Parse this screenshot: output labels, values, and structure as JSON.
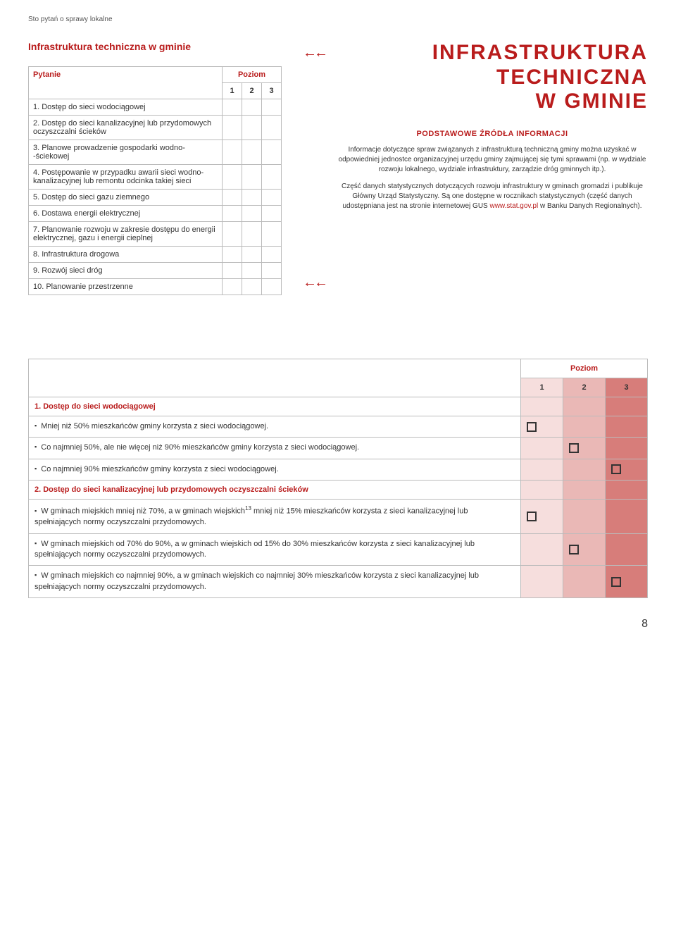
{
  "header": "Sto pytań o sprawy lokalne",
  "left": {
    "section_title": "Infrastruktura techniczna w gminie",
    "col_pytanie": "Pytanie",
    "col_poziom": "Poziom",
    "levels": [
      "1",
      "2",
      "3"
    ],
    "rows": [
      "1. Dostęp do sieci wodociągowej",
      "2. Dostęp do sieci kanalizacyjnej lub przydomowych oczyszczalni ścieków",
      "3. Planowe prowadzenie gospodarki wodno-\n-ściekowej",
      "4. Postępowanie w przypadku awarii sieci wodno-kanalizacyjnej lub remontu odcinka takiej sieci",
      "5. Dostęp do sieci gazu ziemnego",
      "6. Dostawa energii elektrycznej",
      "7. Planowanie rozwoju w zakresie dostępu do energii elektrycznej, gazu i energii cieplnej",
      "8. Infrastruktura drogowa",
      "9. Rozwój sieci dróg",
      "10. Planowanie przestrzenne"
    ]
  },
  "right": {
    "big_title_l1": "INFRASTRUKTURA",
    "big_title_l2": "TECHNICZNA",
    "big_title_l3": "W GMINIE",
    "sub_heading": "PODSTAWOWE ŹRÓDŁA INFORMACJI",
    "para1": "Informacje dotyczące spraw związanych z infrastrukturą techniczną gminy można uzyskać w odpowiedniej jednostce organizacyjnej urzędu gminy zajmującej się tymi sprawami (np. w wydziale rozwoju lokalnego, wydziale infrastruktury, zarządzie dróg gminnych itp.).",
    "para2_a": "Część danych statystycznych dotyczących rozwoju infrastruktury w gminach gromadzi i publikuje Główny Urząd Statystyczny. Są one dostępne w rocznikach statystycznych (część danych udostępniana jest na stronie internetowej GUS ",
    "para2_link": "www.stat.gov.pl",
    "para2_b": " w Banku Danych Regionalnych)."
  },
  "arrows": "←←",
  "table2": {
    "col_poziom": "Poziom",
    "levels": [
      "1",
      "2",
      "3"
    ],
    "h1": "1. Dostęp do sieci wodociągowej",
    "h1_r1": "Mniej niż 50% mieszkańców gminy korzysta z sieci wodociągowej.",
    "h1_r2": "Co najmniej 50%, ale nie więcej niż 90% mieszkańców gminy korzysta z sieci wodociągowej.",
    "h1_r3": "Co najmniej 90% mieszkańców gminy korzysta z sieci wodociągowej.",
    "h2": "2. Dostęp do sieci kanalizacyjnej lub przydomowych oczyszczalni ścieków",
    "h2_r1_a": "W gminach miejskich mniej niż 70%, a w gminach wiejskich",
    "h2_r1_sup": "13",
    "h2_r1_b": " mniej niż 15% mieszkańców korzysta z sieci kanalizacyjnej lub spełniających normy oczyszczalni przydomowych.",
    "h2_r2": "W gminach miejskich od 70% do 90%, a w gminach wiejskich od 15% do 30% mieszkańców korzysta z sieci kanalizacyjnej lub spełniających normy oczyszczalni przydomowych.",
    "h2_r3": "W gminach miejskich co najmniej 90%, a w gminach wiejskich co najmniej 30% mieszkańców korzysta z sieci kanalizacyjnej lub spełniających normy oczyszczalni przydomowych."
  },
  "page_number": "8",
  "colors": {
    "accent": "#b91c1c",
    "lvl1": "#f6dedd",
    "lvl2": "#eab8b6",
    "lvl3": "#d77d7a",
    "border": "#bbbbbb",
    "text": "#333333",
    "bg": "#ffffff"
  }
}
